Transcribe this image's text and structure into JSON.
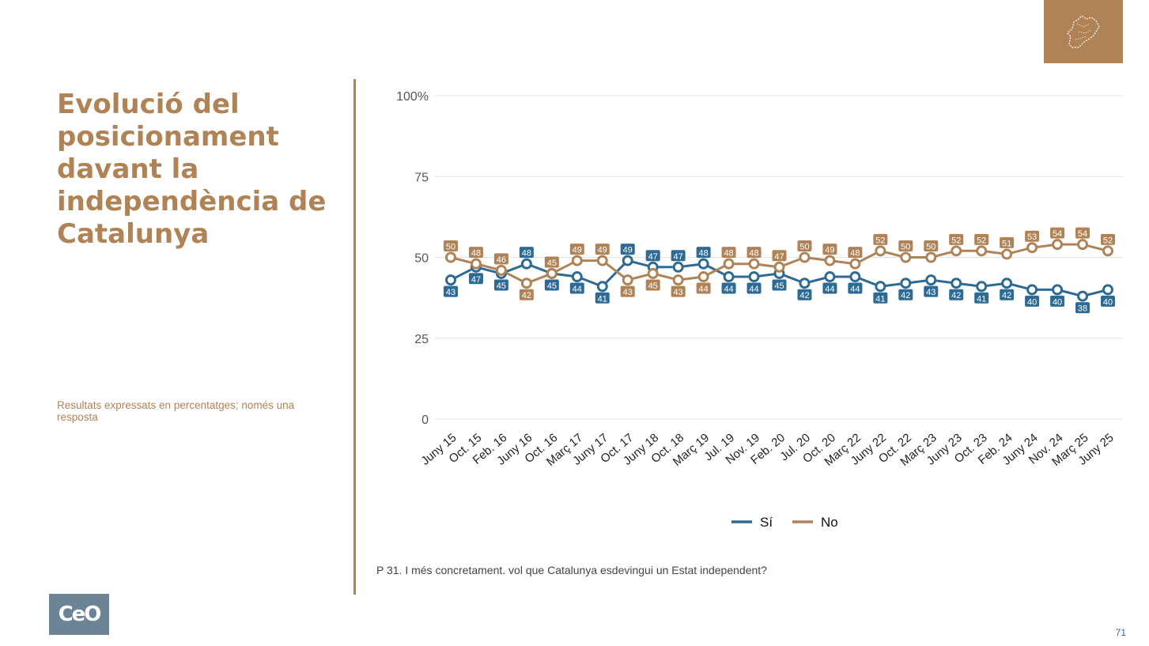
{
  "title": "Evolució del posicionament davant la independència de Catalunya",
  "subtitle": "Resultats expressats en percentatges; només una resposta",
  "question": "P 31. I més concretament. vol que Catalunya esdevingui un Estat independent?",
  "page_number": "71",
  "logo_text": "CeO",
  "colors": {
    "accent": "#b08357",
    "si": "#2e6b94",
    "no": "#b08357",
    "logo_bg": "#6d8396",
    "grid": "#e3e3e3",
    "axis_text": "#555555"
  },
  "icons": {
    "corner": "catalonia-map-icon",
    "logo": "ceo-logo-icon"
  },
  "chart_data": {
    "type": "line",
    "title": "",
    "xlabel": "",
    "ylabel": "",
    "ylim": [
      0,
      100
    ],
    "y_ticks": [
      0,
      25,
      50,
      75,
      100
    ],
    "y_tick_labels": [
      "0",
      "25",
      "50",
      "75",
      "100%"
    ],
    "grid": true,
    "legend_position": "bottom",
    "categories": [
      "Juny 15",
      "Oct. 15",
      "Feb. 16",
      "Juny 16",
      "Oct. 16",
      "Març 17",
      "Juny 17",
      "Oct. 17",
      "Juny 18",
      "Oct. 18",
      "Març 19",
      "Jul. 19",
      "Nov. 19",
      "Feb. 20",
      "Jul. 20",
      "Oct. 20",
      "Març 22",
      "Juny 22",
      "Oct. 22",
      "Març 23",
      "Juny 23",
      "Oct. 23",
      "Feb. 24",
      "Juny 24",
      "Nov. 24",
      "Març 25",
      "Juny 25"
    ],
    "series": [
      {
        "name": "Sí",
        "values": [
          43,
          47,
          45,
          48,
          45,
          44,
          41,
          49,
          47,
          47,
          48,
          44,
          44,
          45,
          42,
          44,
          44,
          41,
          42,
          43,
          42,
          41,
          42,
          40,
          40,
          38,
          40
        ]
      },
      {
        "name": "No",
        "values": [
          50,
          48,
          46,
          42,
          45,
          49,
          49,
          43,
          45,
          43,
          44,
          48,
          48,
          47,
          50,
          49,
          48,
          52,
          50,
          50,
          52,
          52,
          51,
          53,
          54,
          54,
          52
        ]
      }
    ]
  }
}
